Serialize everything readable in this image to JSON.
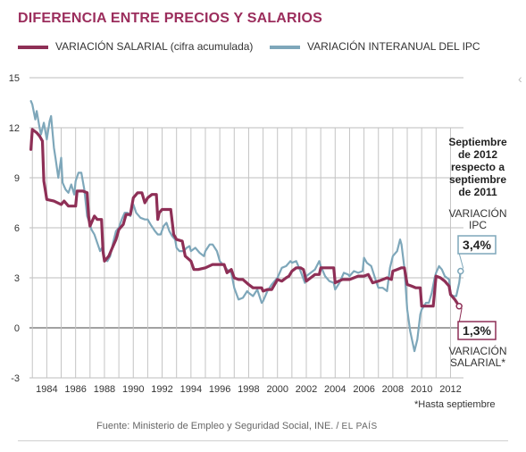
{
  "title": "DIFERENCIA ENTRE PRECIOS Y SALARIOS",
  "colors": {
    "salarial": "#8e2f56",
    "ipc": "#7ea7ba",
    "title": "#9b2d5c"
  },
  "annotation": {
    "heading": [
      "Septiembre",
      "de 2012",
      "respecto a",
      "septiembre",
      "de 2011"
    ],
    "ipc_label": [
      "VARIACIÓN",
      "IPC"
    ],
    "ipc_value": "3,4%",
    "salarial_value": "1,3%",
    "salarial_label": [
      "VARIACIÓN",
      "SALARIAL*"
    ]
  },
  "footnote": "*Hasta septiembre",
  "source": {
    "text": "Fuente: Ministerio de Empleo y Seguridad Social, INE. /",
    "brand": "EL PAÍS"
  },
  "chart_data": {
    "type": "line",
    "title": "DIFERENCIA ENTRE PRECIOS Y SALARIOS",
    "xlabel": "",
    "ylabel": "",
    "ylim": [
      -3,
      15
    ],
    "xlim": [
      1982.8,
      2012.9
    ],
    "y_ticks": [
      -3,
      0,
      3,
      6,
      9,
      12,
      15
    ],
    "x_ticks": [
      1984,
      1986,
      1988,
      1990,
      1992,
      1994,
      1996,
      1998,
      2000,
      2002,
      2004,
      2006,
      2008,
      2010,
      2012
    ],
    "grid": true,
    "legend": "top",
    "series": [
      {
        "name": "VARIACIÓN SALARIAL (cifra acumulada)",
        "color": "#8e2f56",
        "points": [
          [
            1982.9,
            10.7
          ],
          [
            1983.0,
            11.9
          ],
          [
            1983.3,
            11.7
          ],
          [
            1983.5,
            11.5
          ],
          [
            1983.7,
            11.2
          ],
          [
            1983.8,
            8.8
          ],
          [
            1984.0,
            7.7
          ],
          [
            1984.5,
            7.6
          ],
          [
            1985.0,
            7.4
          ],
          [
            1985.2,
            7.6
          ],
          [
            1985.5,
            7.3
          ],
          [
            1986.0,
            7.3
          ],
          [
            1986.1,
            8.2
          ],
          [
            1986.5,
            8.2
          ],
          [
            1986.8,
            8.1
          ],
          [
            1986.9,
            6.7
          ],
          [
            1987.0,
            6.1
          ],
          [
            1987.3,
            6.7
          ],
          [
            1987.5,
            6.5
          ],
          [
            1987.8,
            6.5
          ],
          [
            1987.9,
            4.6
          ],
          [
            1988.0,
            4.0
          ],
          [
            1988.3,
            4.3
          ],
          [
            1988.6,
            4.9
          ],
          [
            1988.8,
            5.3
          ],
          [
            1989.0,
            5.9
          ],
          [
            1989.3,
            6.2
          ],
          [
            1989.5,
            6.8
          ],
          [
            1989.8,
            6.8
          ],
          [
            1990.0,
            7.8
          ],
          [
            1990.3,
            8.1
          ],
          [
            1990.6,
            8.1
          ],
          [
            1990.8,
            7.5
          ],
          [
            1991.0,
            7.8
          ],
          [
            1991.3,
            8.0
          ],
          [
            1991.6,
            8.0
          ],
          [
            1991.7,
            6.5
          ],
          [
            1991.8,
            6.9
          ],
          [
            1992.0,
            7.1
          ],
          [
            1992.3,
            7.1
          ],
          [
            1992.6,
            7.1
          ],
          [
            1992.8,
            5.6
          ],
          [
            1993.0,
            5.3
          ],
          [
            1993.4,
            5.2
          ],
          [
            1993.6,
            4.3
          ],
          [
            1994.0,
            4.0
          ],
          [
            1994.2,
            3.5
          ],
          [
            1994.5,
            3.5
          ],
          [
            1995.0,
            3.6
          ],
          [
            1995.5,
            3.8
          ],
          [
            1996.0,
            3.8
          ],
          [
            1996.3,
            3.8
          ],
          [
            1996.5,
            3.3
          ],
          [
            1996.8,
            3.5
          ],
          [
            1997.0,
            3.0
          ],
          [
            1997.3,
            2.9
          ],
          [
            1997.6,
            2.9
          ],
          [
            1998.0,
            2.6
          ],
          [
            1998.3,
            2.4
          ],
          [
            1998.6,
            2.4
          ],
          [
            1998.9,
            2.4
          ],
          [
            1999.0,
            2.2
          ],
          [
            1999.3,
            2.3
          ],
          [
            1999.6,
            2.3
          ],
          [
            2000.0,
            2.9
          ],
          [
            2000.3,
            2.8
          ],
          [
            2000.6,
            3.0
          ],
          [
            2000.8,
            3.1
          ],
          [
            2001.0,
            3.4
          ],
          [
            2001.3,
            3.6
          ],
          [
            2001.6,
            3.6
          ],
          [
            2001.8,
            3.5
          ],
          [
            2002.0,
            2.8
          ],
          [
            2002.3,
            3.0
          ],
          [
            2002.6,
            3.2
          ],
          [
            2002.9,
            3.2
          ],
          [
            2003.0,
            3.6
          ],
          [
            2003.3,
            3.6
          ],
          [
            2003.6,
            3.6
          ],
          [
            2003.9,
            3.6
          ],
          [
            2004.0,
            2.7
          ],
          [
            2004.5,
            2.9
          ],
          [
            2005.0,
            2.9
          ],
          [
            2005.3,
            3.0
          ],
          [
            2005.6,
            3.1
          ],
          [
            2006.0,
            3.1
          ],
          [
            2006.3,
            3.2
          ],
          [
            2006.6,
            2.7
          ],
          [
            2007.0,
            2.8
          ],
          [
            2007.3,
            2.9
          ],
          [
            2007.6,
            3.0
          ],
          [
            2007.9,
            2.9
          ],
          [
            2008.0,
            3.4
          ],
          [
            2008.3,
            3.5
          ],
          [
            2008.6,
            3.6
          ],
          [
            2008.8,
            3.6
          ],
          [
            2009.0,
            2.6
          ],
          [
            2009.3,
            2.5
          ],
          [
            2009.6,
            2.4
          ],
          [
            2009.9,
            2.4
          ],
          [
            2010.0,
            1.3
          ],
          [
            2010.5,
            1.3
          ],
          [
            2010.8,
            1.3
          ],
          [
            2011.0,
            3.1
          ],
          [
            2011.3,
            3.0
          ],
          [
            2011.6,
            2.8
          ],
          [
            2011.9,
            2.5
          ],
          [
            2012.0,
            2.0
          ],
          [
            2012.3,
            1.7
          ],
          [
            2012.6,
            1.3
          ]
        ]
      },
      {
        "name": "VARIACIÓN INTERANUAL DEL IPC",
        "color": "#7ea7ba",
        "points": [
          [
            1982.9,
            13.6
          ],
          [
            1983.0,
            13.4
          ],
          [
            1983.2,
            12.5
          ],
          [
            1983.3,
            13.0
          ],
          [
            1983.5,
            12.0
          ],
          [
            1983.6,
            11.6
          ],
          [
            1983.8,
            12.3
          ],
          [
            1984.0,
            11.3
          ],
          [
            1984.2,
            12.4
          ],
          [
            1984.3,
            12.7
          ],
          [
            1984.5,
            10.8
          ],
          [
            1984.6,
            10.2
          ],
          [
            1984.8,
            9.0
          ],
          [
            1985.0,
            10.2
          ],
          [
            1985.1,
            8.7
          ],
          [
            1985.3,
            8.3
          ],
          [
            1985.5,
            8.1
          ],
          [
            1985.7,
            8.6
          ],
          [
            1985.9,
            8.0
          ],
          [
            1986.0,
            8.8
          ],
          [
            1986.2,
            9.3
          ],
          [
            1986.4,
            9.3
          ],
          [
            1986.6,
            8.3
          ],
          [
            1986.8,
            6.7
          ],
          [
            1987.0,
            6.2
          ],
          [
            1987.1,
            5.9
          ],
          [
            1987.3,
            5.6
          ],
          [
            1987.5,
            5.1
          ],
          [
            1987.7,
            4.6
          ],
          [
            1987.9,
            4.9
          ],
          [
            1988.0,
            4.2
          ],
          [
            1988.2,
            4.0
          ],
          [
            1988.4,
            4.3
          ],
          [
            1988.6,
            5.1
          ],
          [
            1988.8,
            5.8
          ],
          [
            1989.0,
            6.0
          ],
          [
            1989.2,
            6.5
          ],
          [
            1989.4,
            6.9
          ],
          [
            1989.6,
            6.9
          ],
          [
            1989.8,
            6.7
          ],
          [
            1990.0,
            7.4
          ],
          [
            1990.2,
            6.9
          ],
          [
            1990.5,
            6.6
          ],
          [
            1990.8,
            6.5
          ],
          [
            1991.0,
            6.5
          ],
          [
            1991.2,
            6.2
          ],
          [
            1991.5,
            5.8
          ],
          [
            1991.7,
            5.6
          ],
          [
            1991.9,
            5.6
          ],
          [
            1992.1,
            6.1
          ],
          [
            1992.3,
            6.3
          ],
          [
            1992.5,
            5.8
          ],
          [
            1992.7,
            5.5
          ],
          [
            1992.9,
            5.3
          ],
          [
            1993.0,
            4.8
          ],
          [
            1993.2,
            4.6
          ],
          [
            1993.5,
            4.6
          ],
          [
            1993.7,
            4.8
          ],
          [
            1993.9,
            4.9
          ],
          [
            1994.0,
            4.6
          ],
          [
            1994.3,
            4.8
          ],
          [
            1994.6,
            4.5
          ],
          [
            1994.9,
            4.3
          ],
          [
            1995.0,
            4.6
          ],
          [
            1995.3,
            5.0
          ],
          [
            1995.5,
            5.0
          ],
          [
            1995.8,
            4.6
          ],
          [
            1996.0,
            4.0
          ],
          [
            1996.3,
            3.7
          ],
          [
            1996.5,
            3.5
          ],
          [
            1996.8,
            3.3
          ],
          [
            1997.0,
            2.4
          ],
          [
            1997.3,
            1.7
          ],
          [
            1997.6,
            1.8
          ],
          [
            1997.9,
            2.2
          ],
          [
            1998.0,
            2.1
          ],
          [
            1998.3,
            1.9
          ],
          [
            1998.6,
            2.3
          ],
          [
            1998.9,
            1.5
          ],
          [
            1999.0,
            1.6
          ],
          [
            1999.3,
            2.2
          ],
          [
            1999.6,
            2.6
          ],
          [
            1999.9,
            2.9
          ],
          [
            2000.0,
            3.0
          ],
          [
            2000.3,
            3.6
          ],
          [
            2000.6,
            3.7
          ],
          [
            2000.9,
            4.0
          ],
          [
            2001.0,
            3.9
          ],
          [
            2001.3,
            4.0
          ],
          [
            2001.6,
            3.4
          ],
          [
            2001.9,
            2.7
          ],
          [
            2002.0,
            3.1
          ],
          [
            2002.3,
            3.3
          ],
          [
            2002.6,
            3.5
          ],
          [
            2002.9,
            4.0
          ],
          [
            2003.0,
            3.7
          ],
          [
            2003.3,
            3.1
          ],
          [
            2003.6,
            2.8
          ],
          [
            2003.9,
            2.7
          ],
          [
            2004.0,
            2.3
          ],
          [
            2004.3,
            2.7
          ],
          [
            2004.6,
            3.3
          ],
          [
            2004.9,
            3.2
          ],
          [
            2005.0,
            3.1
          ],
          [
            2005.3,
            3.4
          ],
          [
            2005.6,
            3.3
          ],
          [
            2005.9,
            3.4
          ],
          [
            2006.0,
            4.2
          ],
          [
            2006.2,
            3.9
          ],
          [
            2006.5,
            3.7
          ],
          [
            2006.8,
            2.9
          ],
          [
            2007.0,
            2.4
          ],
          [
            2007.3,
            2.4
          ],
          [
            2007.6,
            2.2
          ],
          [
            2007.8,
            3.6
          ],
          [
            2008.0,
            4.3
          ],
          [
            2008.3,
            4.6
          ],
          [
            2008.5,
            5.3
          ],
          [
            2008.6,
            5.0
          ],
          [
            2008.8,
            3.6
          ],
          [
            2009.0,
            1.1
          ],
          [
            2009.2,
            -0.2
          ],
          [
            2009.4,
            -1.0
          ],
          [
            2009.5,
            -1.4
          ],
          [
            2009.7,
            -0.7
          ],
          [
            2009.9,
            0.8
          ],
          [
            2010.0,
            1.1
          ],
          [
            2010.3,
            1.5
          ],
          [
            2010.5,
            1.5
          ],
          [
            2010.7,
            2.1
          ],
          [
            2010.9,
            3.0
          ],
          [
            2011.0,
            3.3
          ],
          [
            2011.2,
            3.7
          ],
          [
            2011.4,
            3.5
          ],
          [
            2011.6,
            3.1
          ],
          [
            2011.9,
            2.9
          ],
          [
            2012.0,
            2.0
          ],
          [
            2012.2,
            1.9
          ],
          [
            2012.4,
            1.9
          ],
          [
            2012.6,
            2.7
          ],
          [
            2012.7,
            3.4
          ]
        ]
      }
    ]
  }
}
